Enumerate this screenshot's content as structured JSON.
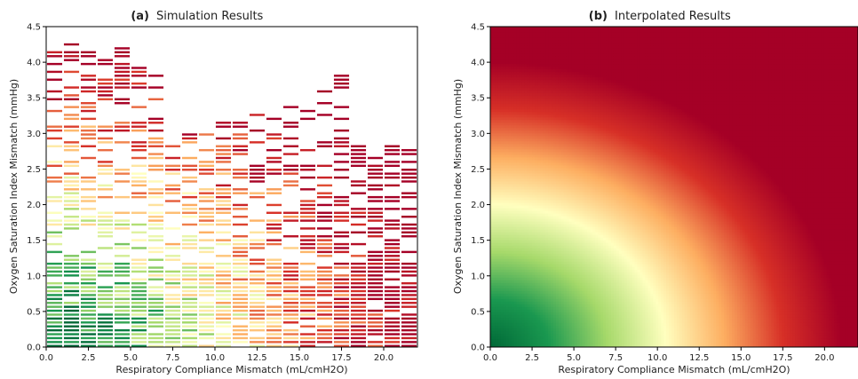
{
  "chart_data": [
    {
      "id": "a",
      "type": "heatmap",
      "panel_letter": "(a)",
      "title": "Simulation Results",
      "xlabel": "Respiratory Compliance Mismatch (mL/cmH2O)",
      "ylabel": "Oxygen Saturation Index Mismatch (mmHg)",
      "xlim": [
        0,
        22
      ],
      "ylim": [
        0,
        4.5
      ],
      "xticks": [
        "0.0",
        "2.5",
        "5.0",
        "7.5",
        "10.0",
        "12.5",
        "15.0",
        "17.5",
        "20.0"
      ],
      "yticks": [
        "0.0",
        "0.5",
        "1.0",
        "1.5",
        "2.0",
        "2.5",
        "3.0",
        "3.5",
        "4.0",
        "4.5"
      ],
      "grid": false,
      "colormap": [
        "#006837",
        "#1a9850",
        "#a6d96a",
        "#ffffbf",
        "#fdae61",
        "#d73027",
        "#a50026"
      ],
      "columns": [
        {
          "x": 0.5,
          "ymax": 4.15
        },
        {
          "x": 1.5,
          "ymax": 4.28
        },
        {
          "x": 2.5,
          "ymax": 4.15
        },
        {
          "x": 3.5,
          "ymax": 4.17
        },
        {
          "x": 4.5,
          "ymax": 4.2
        },
        {
          "x": 5.5,
          "ymax": 4.17
        },
        {
          "x": 6.5,
          "ymax": 4.1
        },
        {
          "x": 7.5,
          "ymax": 2.9
        },
        {
          "x": 8.5,
          "ymax": 3.0
        },
        {
          "x": 9.5,
          "ymax": 3.02
        },
        {
          "x": 10.5,
          "ymax": 3.15
        },
        {
          "x": 11.5,
          "ymax": 3.15
        },
        {
          "x": 12.5,
          "ymax": 3.27
        },
        {
          "x": 13.5,
          "ymax": 3.22
        },
        {
          "x": 14.5,
          "ymax": 3.43
        },
        {
          "x": 15.5,
          "ymax": 3.37
        },
        {
          "x": 16.5,
          "ymax": 3.62
        },
        {
          "x": 17.5,
          "ymax": 3.8
        },
        {
          "x": 18.5,
          "ymax": 2.85
        },
        {
          "x": 19.5,
          "ymax": 2.82
        },
        {
          "x": 20.5,
          "ymax": 2.92
        },
        {
          "x": 21.5,
          "ymax": 2.9
        }
      ]
    },
    {
      "id": "b",
      "type": "heatmap",
      "panel_letter": "(b)",
      "title": "Interpolated Results",
      "xlabel": "Respiratory Compliance Mismatch (mL/cmH2O)",
      "ylabel": "Oxygen Saturation Index Mismatch (mmHg)",
      "xlim": [
        0,
        22
      ],
      "ylim": [
        0,
        4.5
      ],
      "xticks": [
        "0.0",
        "2.5",
        "5.0",
        "7.5",
        "10.0",
        "12.5",
        "15.0",
        "17.5",
        "20.0"
      ],
      "yticks": [
        "0.0",
        "0.5",
        "1.0",
        "1.5",
        "2.0",
        "2.5",
        "3.0",
        "3.5",
        "4.0",
        "4.5"
      ],
      "grid": false,
      "colormap": [
        "#006837",
        "#1a9850",
        "#a6d96a",
        "#ffffbf",
        "#fdae61",
        "#d73027",
        "#a50026"
      ],
      "scale": {
        "x_radius": 21,
        "y_radius": 4.0
      }
    }
  ]
}
